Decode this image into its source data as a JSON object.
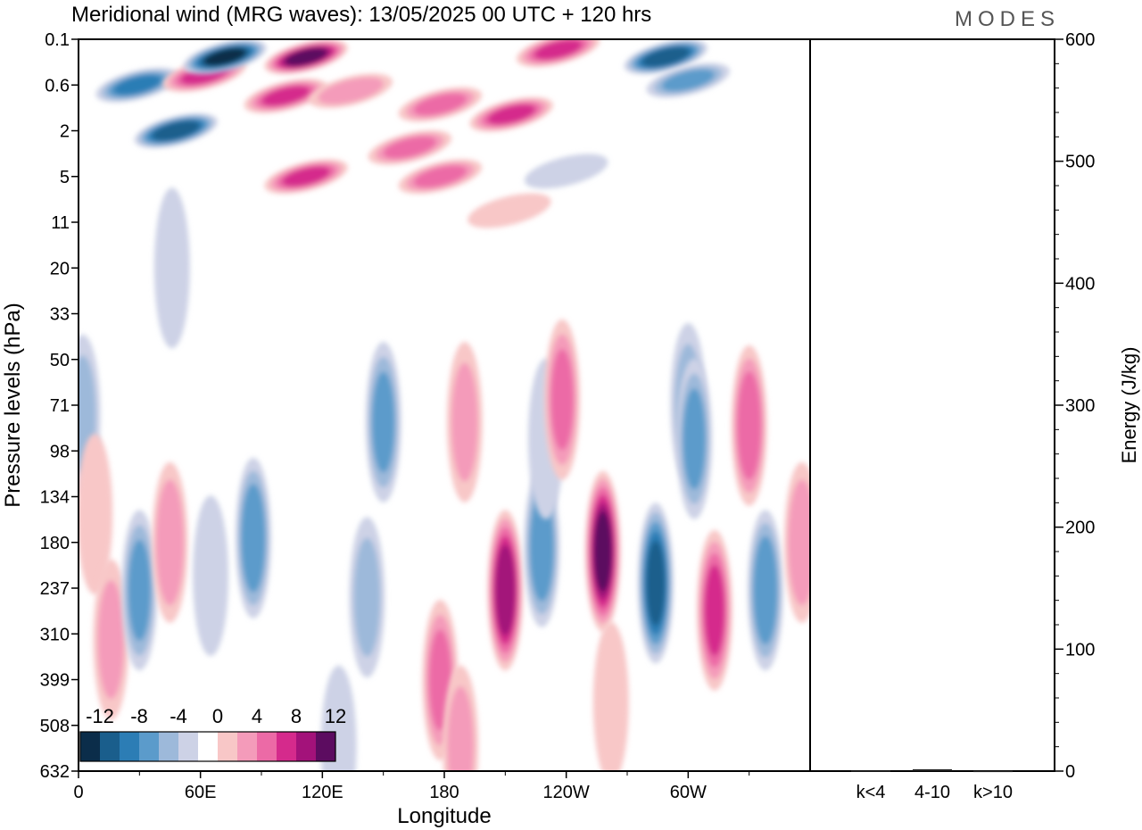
{
  "chart_data": [
    {
      "type": "heatmap",
      "title": "Meridional wind (MRG waves):  13/05/2025  00 UTC  + 120 hrs",
      "xlabel": "Longitude",
      "ylabel": "Pressure levels (hPa)",
      "x_tick_labels": [
        "0",
        "60E",
        "120E",
        "180",
        "120W",
        "60W"
      ],
      "x_tick_degrees": [
        0,
        60,
        120,
        180,
        240,
        300
      ],
      "xlim_degrees": [
        0,
        360
      ],
      "y_tick_labels": [
        "0.1",
        "0.6",
        "2",
        "5",
        "11",
        "20",
        "33",
        "50",
        "71",
        "98",
        "134",
        "180",
        "237",
        "310",
        "399",
        "508",
        "632"
      ],
      "y_axis": "pressure levels, top to bottom (0.1 to 632 hPa)",
      "colorbar": {
        "labels": [
          "-12",
          "-8",
          "-4",
          "0",
          "4",
          "8",
          "12"
        ],
        "levels": [
          -14,
          -12,
          -10,
          -8,
          -6,
          -4,
          -2,
          2,
          4,
          6,
          8,
          10,
          12,
          14
        ],
        "colors": [
          "#0b2d4a",
          "#1a5e8c",
          "#2c7db5",
          "#5b9bcb",
          "#9db9da",
          "#cdd2e6",
          "#ffffff",
          "#f8c7c7",
          "#f49bba",
          "#ec6aa6",
          "#d52a8c",
          "#a3127a",
          "#5c0c60"
        ]
      },
      "features": [
        {
          "lon": 29,
          "p": 0.6,
          "v": -8
        },
        {
          "lon": 48,
          "p": 2,
          "v": -11
        },
        {
          "lon": 62,
          "p": 0.4,
          "v": 8
        },
        {
          "lon": 72,
          "p": 0.2,
          "v": -12
        },
        {
          "lon": 112,
          "p": 0.2,
          "v": 12
        },
        {
          "lon": 102,
          "p": 0.8,
          "v": 8
        },
        {
          "lon": 236,
          "p": 0.15,
          "v": 8
        },
        {
          "lon": 289,
          "p": 0.2,
          "v": -11
        },
        {
          "lon": 300,
          "p": 0.5,
          "v": -6
        },
        {
          "lon": 134,
          "p": 0.7,
          "v": 5
        },
        {
          "lon": 178,
          "p": 1,
          "v": 6
        },
        {
          "lon": 213,
          "p": 1.3,
          "v": 8
        },
        {
          "lon": 163,
          "p": 2.8,
          "v": 6
        },
        {
          "lon": 112,
          "p": 5,
          "v": 8
        },
        {
          "lon": 178,
          "p": 5,
          "v": 6
        },
        {
          "lon": 212,
          "p": 9,
          "v": 3
        },
        {
          "lon": 46,
          "p": 20,
          "v": -3
        },
        {
          "lon": 240,
          "p": 4.5,
          "v": -3
        },
        {
          "lon": 2,
          "p": 76,
          "v": -4
        },
        {
          "lon": 8,
          "p": 150,
          "v": 3
        },
        {
          "lon": 16,
          "p": 320,
          "v": 4
        },
        {
          "lon": 30,
          "p": 240,
          "v": -6
        },
        {
          "lon": 45,
          "p": 180,
          "v": 5
        },
        {
          "lon": 65,
          "p": 220,
          "v": -2
        },
        {
          "lon": 86,
          "p": 175,
          "v": -7
        },
        {
          "lon": 150,
          "p": 80,
          "v": -6
        },
        {
          "lon": 142,
          "p": 250,
          "v": -4
        },
        {
          "lon": 178,
          "p": 400,
          "v": 6
        },
        {
          "lon": 190,
          "p": 80,
          "v": 4
        },
        {
          "lon": 210,
          "p": 240,
          "v": 11
        },
        {
          "lon": 228,
          "p": 185,
          "v": -7
        },
        {
          "lon": 230,
          "p": 90,
          "v": -3
        },
        {
          "lon": 238,
          "p": 68,
          "v": 6
        },
        {
          "lon": 258,
          "p": 190,
          "v": 12
        },
        {
          "lon": 262,
          "p": 450,
          "v": 3
        },
        {
          "lon": 284,
          "p": 230,
          "v": -10
        },
        {
          "lon": 300,
          "p": 70,
          "v": -4
        },
        {
          "lon": 303,
          "p": 90,
          "v": -6
        },
        {
          "lon": 313,
          "p": 270,
          "v": 8
        },
        {
          "lon": 330,
          "p": 82,
          "v": 7
        },
        {
          "lon": 338,
          "p": 240,
          "v": -7
        },
        {
          "lon": 356,
          "p": 180,
          "v": 5
        },
        {
          "lon": 128,
          "p": 560,
          "v": -3
        },
        {
          "lon": 188,
          "p": 560,
          "v": 4
        }
      ]
    },
    {
      "type": "bar",
      "ylabel": "Energy (J/kg)",
      "categories": [
        "k<4",
        "4-10",
        "k>10"
      ],
      "values": [
        0.5,
        1.5,
        0.3
      ],
      "ylim": [
        0,
        600
      ],
      "y_tick_labels": [
        "0",
        "100",
        "200",
        "300",
        "400",
        "500",
        "600"
      ],
      "y_ticks": [
        0,
        100,
        200,
        300,
        400,
        500,
        600
      ]
    }
  ],
  "logo_text": "MODES"
}
